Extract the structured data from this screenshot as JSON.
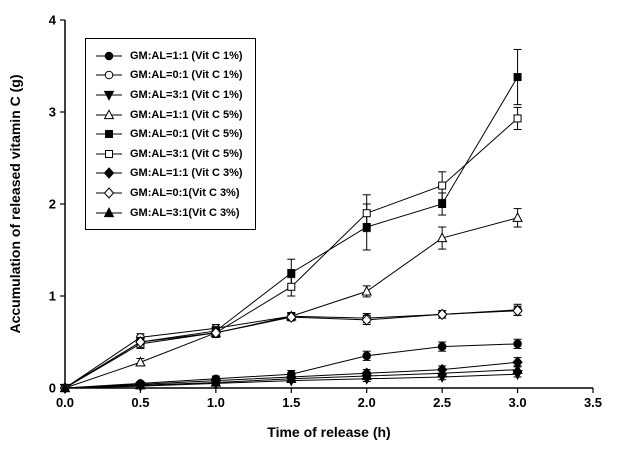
{
  "chart_data": {
    "type": "line",
    "title": "",
    "xlabel": "Time of release (h)",
    "ylabel": "Accumulation of released vitamin C (g)",
    "xlim": [
      0,
      3.5
    ],
    "ylim": [
      0,
      4
    ],
    "xticks": [
      0.0,
      0.5,
      1.0,
      1.5,
      2.0,
      2.5,
      3.0,
      3.5
    ],
    "xtick_labels": [
      "0.0",
      "0.5",
      "1.0",
      "1.5",
      "2.0",
      "2.5",
      "3.0",
      "3.5"
    ],
    "yticks": [
      0,
      1,
      2,
      3,
      4
    ],
    "ytick_labels": [
      "0",
      "1",
      "2",
      "3",
      "4"
    ],
    "grid": false,
    "legend_position": "top-left",
    "line_color": "#000000",
    "background_color": "#ffffff",
    "x": [
      0,
      0.5,
      1.0,
      1.5,
      2.0,
      2.5,
      3.0
    ],
    "series": [
      {
        "name": "GM:AL=1:1 (Vit C 1%)",
        "marker": "circle",
        "fill": "filled",
        "values": [
          0,
          0.05,
          0.1,
          0.15,
          0.35,
          0.45,
          0.48
        ],
        "errors": [
          0,
          0.02,
          0.03,
          0.04,
          0.05,
          0.05,
          0.05
        ]
      },
      {
        "name": "GM:AL=0:1 (Vit C 1%)",
        "marker": "circle",
        "fill": "open",
        "values": [
          0,
          0.55,
          0.65,
          0.78,
          0.76,
          0.8,
          0.85
        ],
        "errors": [
          0,
          0.04,
          0.04,
          0.04,
          0.05,
          0.04,
          0.06
        ]
      },
      {
        "name": "GM:AL=3:1 (Vit C 1%)",
        "marker": "triangle-down",
        "fill": "filled",
        "values": [
          0,
          0.02,
          0.05,
          0.08,
          0.1,
          0.12,
          0.15
        ],
        "errors": [
          0,
          0.01,
          0.02,
          0.02,
          0.03,
          0.03,
          0.03
        ]
      },
      {
        "name": "GM:AL=1:1 (Vit C 5%)",
        "marker": "triangle-up",
        "fill": "open",
        "values": [
          0,
          0.28,
          0.6,
          0.78,
          1.05,
          1.63,
          1.85
        ],
        "errors": [
          0,
          0.04,
          0.05,
          0.04,
          0.06,
          0.12,
          0.1
        ]
      },
      {
        "name": "GM:AL=0:1 (Vit C 5%)",
        "marker": "square",
        "fill": "filled",
        "values": [
          0,
          0.5,
          0.62,
          1.25,
          1.75,
          2.0,
          3.38
        ],
        "errors": [
          0,
          0.05,
          0.05,
          0.15,
          0.25,
          0.12,
          0.3
        ]
      },
      {
        "name": "GM:AL=3:1 (Vit C 5%)",
        "marker": "square",
        "fill": "open",
        "values": [
          0,
          0.48,
          0.6,
          1.1,
          1.9,
          2.2,
          2.93
        ],
        "errors": [
          0,
          0.05,
          0.05,
          0.1,
          0.2,
          0.15,
          0.12
        ]
      },
      {
        "name": "GM:AL=1:1 (Vit C 3%)",
        "marker": "diamond",
        "fill": "filled",
        "values": [
          0,
          0.04,
          0.08,
          0.12,
          0.16,
          0.2,
          0.28
        ],
        "errors": [
          0,
          0.02,
          0.02,
          0.03,
          0.04,
          0.04,
          0.05
        ]
      },
      {
        "name": "GM:AL=0:1(Vit C 3%)",
        "marker": "diamond",
        "fill": "open",
        "values": [
          0,
          0.5,
          0.6,
          0.77,
          0.74,
          0.8,
          0.84
        ],
        "errors": [
          0,
          0.03,
          0.04,
          0.04,
          0.05,
          0.04,
          0.05
        ]
      },
      {
        "name": "GM:AL=3:1(Vit C 3%)",
        "marker": "triangle-up",
        "fill": "filled",
        "values": [
          0,
          0.03,
          0.06,
          0.1,
          0.13,
          0.16,
          0.2
        ],
        "errors": [
          0,
          0.01,
          0.02,
          0.02,
          0.03,
          0.03,
          0.04
        ]
      }
    ]
  }
}
